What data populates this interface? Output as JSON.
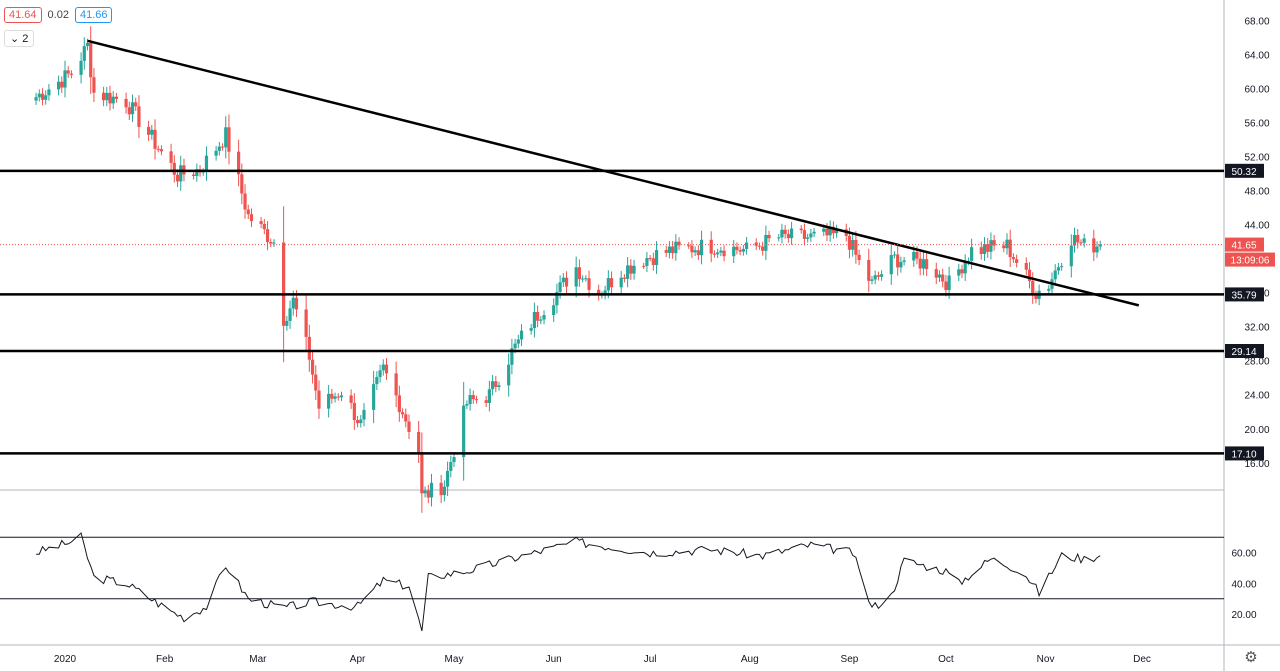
{
  "legend": {
    "open": "41.64",
    "change": "0.02",
    "close": "41.66"
  },
  "collapse_label": "2",
  "settings_icon": "gear-icon",
  "colors": {
    "up": "#26a69a",
    "down": "#ef5350",
    "line": "#000000",
    "price_tag": "#ef5350"
  },
  "x_axis": {
    "labels": [
      "2020",
      "Feb",
      "Mar",
      "Apr",
      "May",
      "Jun",
      "Jul",
      "Aug",
      "Sep",
      "Oct",
      "Nov",
      "Dec"
    ]
  },
  "price_axis": {
    "ticks": [
      "68.00",
      "64.00",
      "60.00",
      "56.00",
      "52.00",
      "48.00",
      "44.00",
      "40.00",
      "36.00",
      "32.00",
      "28.00",
      "24.00",
      "20.00",
      "16.00"
    ],
    "ylim": [
      12.8,
      70.4
    ]
  },
  "rsi_axis": {
    "ticks": [
      "60.00",
      "40.00",
      "20.00"
    ],
    "ylim": [
      0,
      100
    ],
    "bands": [
      70,
      30
    ]
  },
  "current_price": {
    "label": "41.65",
    "value": 41.65,
    "countdown": "13:09:06"
  },
  "chart_data": {
    "type": "candlestick",
    "levels": [
      {
        "label": "50.32",
        "value": 50.32
      },
      {
        "label": "35.79",
        "value": 35.79
      },
      {
        "label": "29.14",
        "value": 29.14
      },
      {
        "label": "17.10",
        "value": 17.1
      }
    ],
    "trendline": {
      "start": [
        "2020-01-08",
        65.6
      ],
      "end": [
        "2020-11-30",
        34.5
      ]
    },
    "price_anchors": [
      [
        "2019-12-23",
        59.0
      ],
      [
        "2020-01-03",
        61.8
      ],
      [
        "2020-01-08",
        65.0
      ],
      [
        "2020-01-10",
        59.5
      ],
      [
        "2020-01-20",
        58.5
      ],
      [
        "2020-01-31",
        52.5
      ],
      [
        "2020-02-05",
        49.8
      ],
      [
        "2020-02-12",
        50.5
      ],
      [
        "2020-02-20",
        54.5
      ],
      [
        "2020-02-27",
        45.0
      ],
      [
        "2020-03-06",
        42.0
      ],
      [
        "2020-03-09",
        33.0
      ],
      [
        "2020-03-12",
        35.0
      ],
      [
        "2020-03-17",
        28.5
      ],
      [
        "2020-03-20",
        22.5
      ],
      [
        "2020-03-27",
        24.5
      ],
      [
        "2020-04-02",
        20.5
      ],
      [
        "2020-04-09",
        27.0
      ],
      [
        "2020-04-14",
        23.0
      ],
      [
        "2020-04-20",
        17.5
      ],
      [
        "2020-04-21",
        12.0
      ],
      [
        "2020-04-28",
        13.5
      ],
      [
        "2020-05-05",
        23.0
      ],
      [
        "2020-05-12",
        24.0
      ],
      [
        "2020-05-19",
        29.0
      ],
      [
        "2020-05-26",
        33.0
      ],
      [
        "2020-06-02",
        36.0
      ],
      [
        "2020-06-08",
        39.0
      ],
      [
        "2020-06-15",
        36.0
      ],
      [
        "2020-06-22",
        38.5
      ],
      [
        "2020-06-29",
        40.0
      ],
      [
        "2020-07-08",
        41.0
      ],
      [
        "2020-07-20",
        41.5
      ],
      [
        "2020-07-31",
        41.0
      ],
      [
        "2020-08-10",
        42.5
      ],
      [
        "2020-08-20",
        42.5
      ],
      [
        "2020-08-31",
        42.8
      ],
      [
        "2020-09-04",
        39.5
      ],
      [
        "2020-09-08",
        37.0
      ],
      [
        "2020-09-15",
        40.0
      ],
      [
        "2020-09-25",
        39.5
      ],
      [
        "2020-10-02",
        37.0
      ],
      [
        "2020-10-09",
        41.0
      ],
      [
        "2020-10-20",
        41.5
      ],
      [
        "2020-10-29",
        36.0
      ],
      [
        "2020-11-02",
        37.0
      ],
      [
        "2020-11-09",
        42.5
      ],
      [
        "2020-11-13",
        41.5
      ],
      [
        "2020-11-18",
        41.66
      ]
    ],
    "rsi_anchors": [
      [
        "2019-12-23",
        60
      ],
      [
        "2020-01-03",
        67
      ],
      [
        "2020-01-06",
        70
      ],
      [
        "2020-01-10",
        44
      ],
      [
        "2020-01-20",
        40
      ],
      [
        "2020-02-03",
        22
      ],
      [
        "2020-02-07",
        18
      ],
      [
        "2020-02-14",
        25
      ],
      [
        "2020-02-20",
        52
      ],
      [
        "2020-02-27",
        30
      ],
      [
        "2020-03-09",
        24
      ],
      [
        "2020-03-18",
        28
      ],
      [
        "2020-04-01",
        25
      ],
      [
        "2020-04-09",
        42
      ],
      [
        "2020-04-17",
        38
      ],
      [
        "2020-04-21",
        9
      ],
      [
        "2020-04-23",
        44
      ],
      [
        "2020-05-05",
        48
      ],
      [
        "2020-05-19",
        56
      ],
      [
        "2020-06-08",
        67
      ],
      [
        "2020-07-01",
        60
      ],
      [
        "2020-07-20",
        62
      ],
      [
        "2020-08-05",
        58
      ],
      [
        "2020-08-20",
        65
      ],
      [
        "2020-09-02",
        60
      ],
      [
        "2020-09-08",
        24
      ],
      [
        "2020-09-14",
        32
      ],
      [
        "2020-09-18",
        55
      ],
      [
        "2020-10-01",
        48
      ],
      [
        "2020-10-05",
        40
      ],
      [
        "2020-10-15",
        56
      ],
      [
        "2020-10-25",
        48
      ],
      [
        "2020-10-30",
        34
      ],
      [
        "2020-11-06",
        58
      ],
      [
        "2020-11-13",
        56
      ],
      [
        "2020-11-18",
        58
      ]
    ]
  }
}
